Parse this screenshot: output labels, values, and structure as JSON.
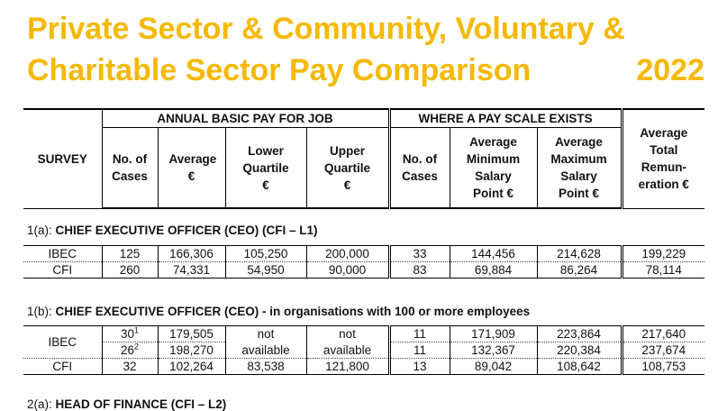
{
  "title": {
    "line1": "Private Sector & Community, Voluntary &",
    "line2": "Charitable Sector Pay Comparison",
    "year": "2022"
  },
  "header": {
    "survey": "SURVEY",
    "group_annual": "ANNUAL BASIC PAY FOR JOB",
    "group_scale": "WHERE A PAY SCALE EXISTS",
    "avg_total": "Average Total Remun-eration €",
    "cols": {
      "cases": "No. of Cases",
      "average": "Average €",
      "lower": "Lower Quartile €",
      "upper": "Upper Quartile €",
      "scale_cases": "No. of Cases",
      "avg_min": "Average Minimum Salary Point €",
      "avg_max": "Average Maximum Salary Point €"
    }
  },
  "sections": [
    {
      "id": "1(a):",
      "title": "CHIEF EXECUTIVE OFFICER (CEO) (CFI – L1)",
      "suffix": "",
      "rows": [
        {
          "survey": "IBEC",
          "cases": "125",
          "average": "166,306",
          "lower": "105,250",
          "upper": "200,000",
          "scale_cases": "33",
          "avg_min": "144,456",
          "avg_max": "214,628",
          "total": "199,229"
        },
        {
          "survey": "CFI",
          "cases": "260",
          "average": "74,331",
          "lower": "54,950",
          "upper": "90,000",
          "scale_cases": "83",
          "avg_min": "69,884",
          "avg_max": "86,264",
          "total": "78,114"
        }
      ]
    },
    {
      "id": "1(b):",
      "title": "CHIEF EXECUTIVE OFFICER (CEO)",
      "suffix": " - in organisations with 100 or more employees",
      "rows": [
        {
          "survey": "IBEC",
          "cases": "30",
          "cases_sup": "1",
          "average": "179,505",
          "lower": "not",
          "upper": "not",
          "scale_cases": "11",
          "avg_min": "171,909",
          "avg_max": "223,864",
          "total": "217,640"
        },
        {
          "survey": "",
          "cases": "26",
          "cases_sup": "2",
          "average": "198,270",
          "lower": "available",
          "upper": "available",
          "scale_cases": "11",
          "avg_min": "132,367",
          "avg_max": "220,384",
          "total": "237,674"
        },
        {
          "survey": "CFI",
          "cases": "32",
          "average": "102,264",
          "lower": "83,538",
          "upper": "121,800",
          "scale_cases": "13",
          "avg_min": "89,042",
          "avg_max": "108,642",
          "total": "108,753"
        }
      ]
    }
  ],
  "next_section": {
    "id": "2(a):",
    "title": "HEAD OF FINANCE (CFI – L2)"
  }
}
